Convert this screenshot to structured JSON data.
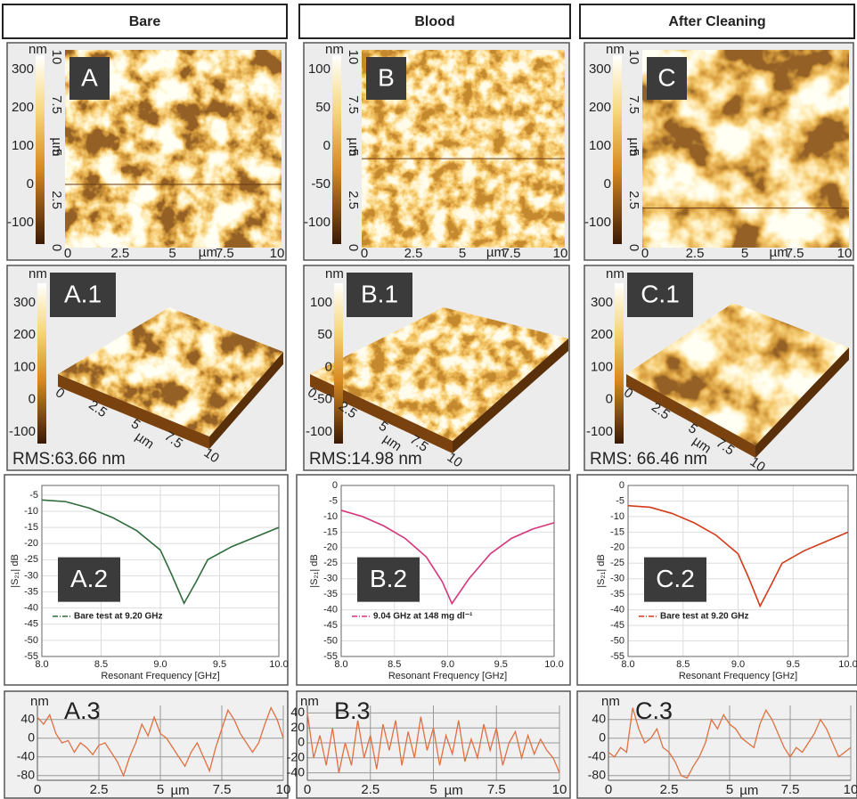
{
  "columns": [
    {
      "header": "Bare",
      "image": {
        "label": "A",
        "unit": "nm",
        "scale": [
          300,
          200,
          100,
          0,
          -100
        ],
        "axis_unit": "µm",
        "ticks": [
          0,
          2.5,
          5,
          7.5,
          10
        ]
      },
      "surface": {
        "label": "A.1",
        "unit": "nm",
        "scale": [
          300,
          200,
          100,
          0,
          -100
        ],
        "axis_unit": "µm",
        "ticks": [
          0,
          2.5,
          5,
          7.5,
          10
        ],
        "rms": "RMS:63.66 nm"
      }
    },
    {
      "header": "Blood",
      "image": {
        "label": "B",
        "unit": "nm",
        "scale": [
          100,
          50,
          0,
          -50,
          -100
        ],
        "axis_unit": "µm",
        "ticks": [
          0,
          2.5,
          5,
          7.5,
          10
        ]
      },
      "surface": {
        "label": "B.1",
        "unit": "nm",
        "scale": [
          100,
          50,
          0,
          -50,
          -100
        ],
        "axis_unit": "µm",
        "ticks": [
          0,
          2.5,
          5,
          7.5,
          10
        ],
        "rms": "RMS:14.98 nm"
      }
    },
    {
      "header": "After Cleaning",
      "image": {
        "label": "C",
        "unit": "nm",
        "scale": [
          300,
          200,
          100,
          0,
          -100
        ],
        "axis_unit": "µm",
        "ticks": [
          0,
          2.5,
          5,
          7.5,
          10
        ]
      },
      "surface": {
        "label": "C.1",
        "unit": "nm",
        "scale": [
          300,
          200,
          100,
          0,
          -100
        ],
        "axis_unit": "µm",
        "ticks": [
          0,
          2.5,
          5,
          7.5,
          10
        ],
        "rms": "RMS: 66.46 nm"
      }
    }
  ],
  "chart_data": [
    {
      "type": "line",
      "label": "A.2",
      "x_label": "Resonant Frequency [GHz]",
      "y_label": "|S₂₁| dB",
      "grid": true,
      "x": [
        8.0,
        8.2,
        8.4,
        8.6,
        8.8,
        9.0,
        9.1,
        9.2,
        9.3,
        9.4,
        9.6,
        9.8,
        10.0
      ],
      "series": [
        {
          "name": "Bare test at 9.20 GHz",
          "color": "#2e6b3a",
          "values": [
            -6.5,
            -7,
            -9,
            -12,
            -16,
            -22,
            -30,
            -38.5,
            -32,
            -25,
            -21,
            -18,
            -15
          ]
        }
      ],
      "xlim": [
        8,
        10
      ],
      "xticks": [
        {
          "value": 8,
          "label": "8.0"
        },
        {
          "value": 8.5,
          "label": "8.5"
        },
        {
          "value": 9,
          "label": "9.0"
        },
        {
          "value": 9.5,
          "label": "9.5"
        },
        {
          "value": 10,
          "label": "10.0"
        }
      ],
      "ylim": [
        -55,
        -2
      ],
      "yticks": [
        -5,
        -10,
        -15,
        -20,
        -25,
        -30,
        -35,
        -40,
        -45,
        -50,
        -55
      ]
    },
    {
      "type": "line",
      "label": "B.2",
      "x_label": "Resonant Frequency [GHz]",
      "y_label": "|S₂₁| dB",
      "grid": true,
      "x": [
        8.0,
        8.2,
        8.4,
        8.6,
        8.8,
        8.95,
        9.04,
        9.2,
        9.4,
        9.6,
        9.8,
        10.0
      ],
      "series": [
        {
          "name": "9.04 GHz at 148 mg dl⁻¹",
          "color": "#d4357a",
          "values": [
            -8,
            -10,
            -13,
            -17,
            -23,
            -31,
            -38,
            -30,
            -22,
            -17,
            -14,
            -12
          ]
        }
      ],
      "xlim": [
        8,
        10
      ],
      "xticks": [
        {
          "value": 8,
          "label": "8.0"
        },
        {
          "value": 8.5,
          "label": "8.5"
        },
        {
          "value": 9,
          "label": "9.0"
        },
        {
          "value": 9.5,
          "label": "9.5"
        },
        {
          "value": 10,
          "label": "10.0"
        }
      ],
      "ylim": [
        -55,
        0
      ],
      "yticks": [
        0,
        -5,
        -10,
        -15,
        -20,
        -25,
        -30,
        -35,
        -40,
        -45,
        -50,
        -55
      ]
    },
    {
      "type": "line",
      "label": "C.2",
      "x_label": "Resonant Frequency [GHz]",
      "y_label": "|S₂₁| dB",
      "grid": true,
      "x": [
        8.0,
        8.2,
        8.4,
        8.6,
        8.8,
        9.0,
        9.1,
        9.2,
        9.3,
        9.4,
        9.6,
        9.8,
        10.0
      ],
      "series": [
        {
          "name": "Bare test at 9.20 GHz",
          "color": "#d23a1a",
          "values": [
            -6.5,
            -7,
            -9,
            -12,
            -16,
            -22,
            -30,
            -38.8,
            -32,
            -25,
            -21,
            -18,
            -15
          ]
        }
      ],
      "xlim": [
        8,
        10
      ],
      "xticks": [
        {
          "value": 8,
          "label": "8.0"
        },
        {
          "value": 8.5,
          "label": "8.5"
        },
        {
          "value": 9,
          "label": "9.0"
        },
        {
          "value": 9.5,
          "label": "9.5"
        },
        {
          "value": 10,
          "label": "10.0"
        }
      ],
      "ylim": [
        -55,
        0
      ],
      "yticks": [
        0,
        -5,
        -10,
        -15,
        -20,
        -25,
        -30,
        -35,
        -40,
        -45,
        -50,
        -55
      ]
    },
    {
      "type": "profile",
      "label": "A.3",
      "y_label": "nm",
      "x_label": "µm",
      "color": "#e07040",
      "grid": true,
      "x": [
        0,
        0.25,
        0.5,
        0.75,
        1,
        1.25,
        1.5,
        1.75,
        2,
        2.25,
        2.5,
        2.75,
        3,
        3.25,
        3.5,
        3.75,
        4,
        4.25,
        4.5,
        4.75,
        5,
        5.25,
        5.5,
        5.75,
        6,
        6.25,
        6.5,
        6.75,
        7,
        7.25,
        7.5,
        7.75,
        8,
        8.25,
        8.5,
        8.75,
        9,
        9.25,
        9.5,
        9.75,
        10
      ],
      "values": [
        45,
        30,
        50,
        10,
        -10,
        -5,
        -30,
        -10,
        -20,
        -35,
        -15,
        -10,
        -30,
        -50,
        -80,
        -40,
        -10,
        30,
        5,
        45,
        10,
        0,
        -20,
        -40,
        -60,
        -30,
        -10,
        -40,
        -70,
        -20,
        20,
        60,
        40,
        10,
        -10,
        -30,
        -10,
        30,
        65,
        40,
        0
      ],
      "xlim": [
        0,
        10
      ],
      "xticks": [
        0,
        2.5,
        5,
        7.5,
        10
      ],
      "ylim": [
        -90,
        70
      ],
      "yticks": [
        40,
        0,
        -40,
        -80
      ]
    },
    {
      "type": "profile",
      "label": "B.3",
      "y_label": "nm",
      "x_label": "µm",
      "color": "#e07040",
      "grid": true,
      "x": [
        0,
        0.25,
        0.5,
        0.75,
        1,
        1.25,
        1.5,
        1.75,
        2,
        2.25,
        2.5,
        2.75,
        3,
        3.25,
        3.5,
        3.75,
        4,
        4.25,
        4.5,
        4.75,
        5,
        5.25,
        5.5,
        5.75,
        6,
        6.25,
        6.5,
        6.75,
        7,
        7.25,
        7.5,
        7.75,
        8,
        8.25,
        8.5,
        8.75,
        9,
        9.25,
        9.5,
        9.75,
        10
      ],
      "values": [
        40,
        -20,
        10,
        -30,
        20,
        -40,
        0,
        -30,
        30,
        -20,
        10,
        -35,
        25,
        -10,
        30,
        -30,
        15,
        -20,
        35,
        -10,
        20,
        -30,
        10,
        -15,
        30,
        -25,
        5,
        -20,
        25,
        -10,
        20,
        -30,
        0,
        15,
        -20,
        10,
        -15,
        5,
        -10,
        -20,
        -40
      ],
      "xlim": [
        0,
        10
      ],
      "xticks": [
        0,
        2.5,
        5,
        7.5,
        10
      ],
      "ylim": [
        -50,
        50
      ],
      "yticks": [
        40,
        20,
        0,
        -20,
        -40
      ]
    },
    {
      "type": "profile",
      "label": "C.3",
      "y_label": "nm",
      "x_label": "µm",
      "color": "#e07040",
      "grid": true,
      "x": [
        0,
        0.25,
        0.5,
        0.75,
        1,
        1.25,
        1.5,
        1.75,
        2,
        2.25,
        2.5,
        2.75,
        3,
        3.25,
        3.5,
        3.75,
        4,
        4.25,
        4.5,
        4.75,
        5,
        5.25,
        5.5,
        5.75,
        6,
        6.25,
        6.5,
        6.75,
        7,
        7.25,
        7.5,
        7.75,
        8,
        8.25,
        8.5,
        8.75,
        9,
        9.25,
        9.5,
        9.75,
        10
      ],
      "values": [
        -30,
        -40,
        -20,
        -30,
        65,
        20,
        -10,
        0,
        20,
        -20,
        -30,
        -50,
        -80,
        -85,
        -60,
        -40,
        -10,
        40,
        20,
        50,
        30,
        20,
        0,
        -10,
        -20,
        30,
        60,
        40,
        10,
        -20,
        -40,
        -20,
        -30,
        -10,
        10,
        40,
        20,
        -10,
        -40,
        -30,
        -20
      ],
      "xlim": [
        0,
        10
      ],
      "xticks": [
        0,
        2.5,
        5,
        7.5,
        10
      ],
      "ylim": [
        -90,
        70
      ],
      "yticks": [
        40,
        0,
        -40,
        -80
      ]
    }
  ]
}
